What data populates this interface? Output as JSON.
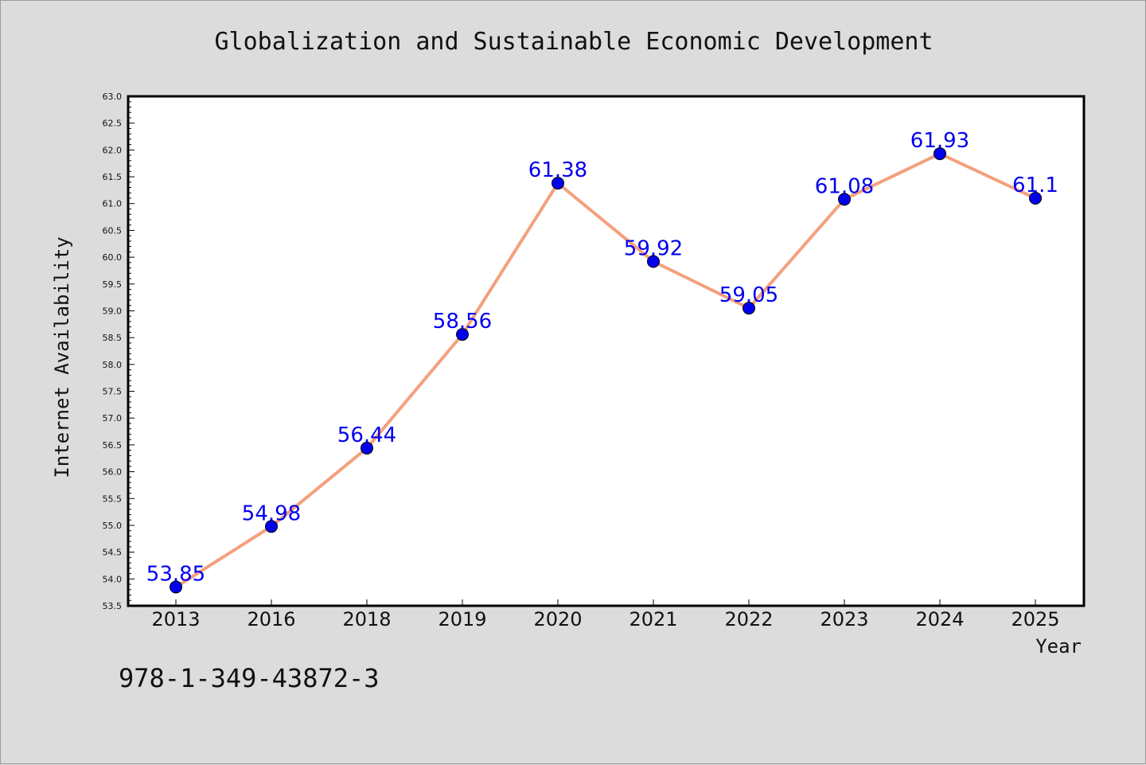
{
  "chart_data": {
    "type": "line",
    "title": "Globalization and Sustainable Economic Development",
    "xlabel": "Year",
    "ylabel": "Internet Availability",
    "categories": [
      "2013",
      "2016",
      "2018",
      "2019",
      "2020",
      "2021",
      "2022",
      "2023",
      "2024",
      "2025"
    ],
    "series": [
      {
        "values": [
          53.85,
          54.98,
          56.44,
          58.56,
          61.38,
          59.92,
          59.05,
          61.08,
          61.93,
          61.1
        ]
      }
    ],
    "data_labels": [
      "53.85",
      "54.98",
      "56.44",
      "58.56",
      "61.38",
      "59.92",
      "59.05",
      "61.08",
      "61.93",
      "61.1"
    ],
    "ylim": [
      53.5,
      63.0
    ],
    "ytick_step": 0.5,
    "grid": false,
    "line_color": "#f4a07e",
    "marker_color": "#0000ee",
    "label_color": "#0000ee"
  },
  "footer": {
    "isbn": "978-1-349-43872-3"
  }
}
